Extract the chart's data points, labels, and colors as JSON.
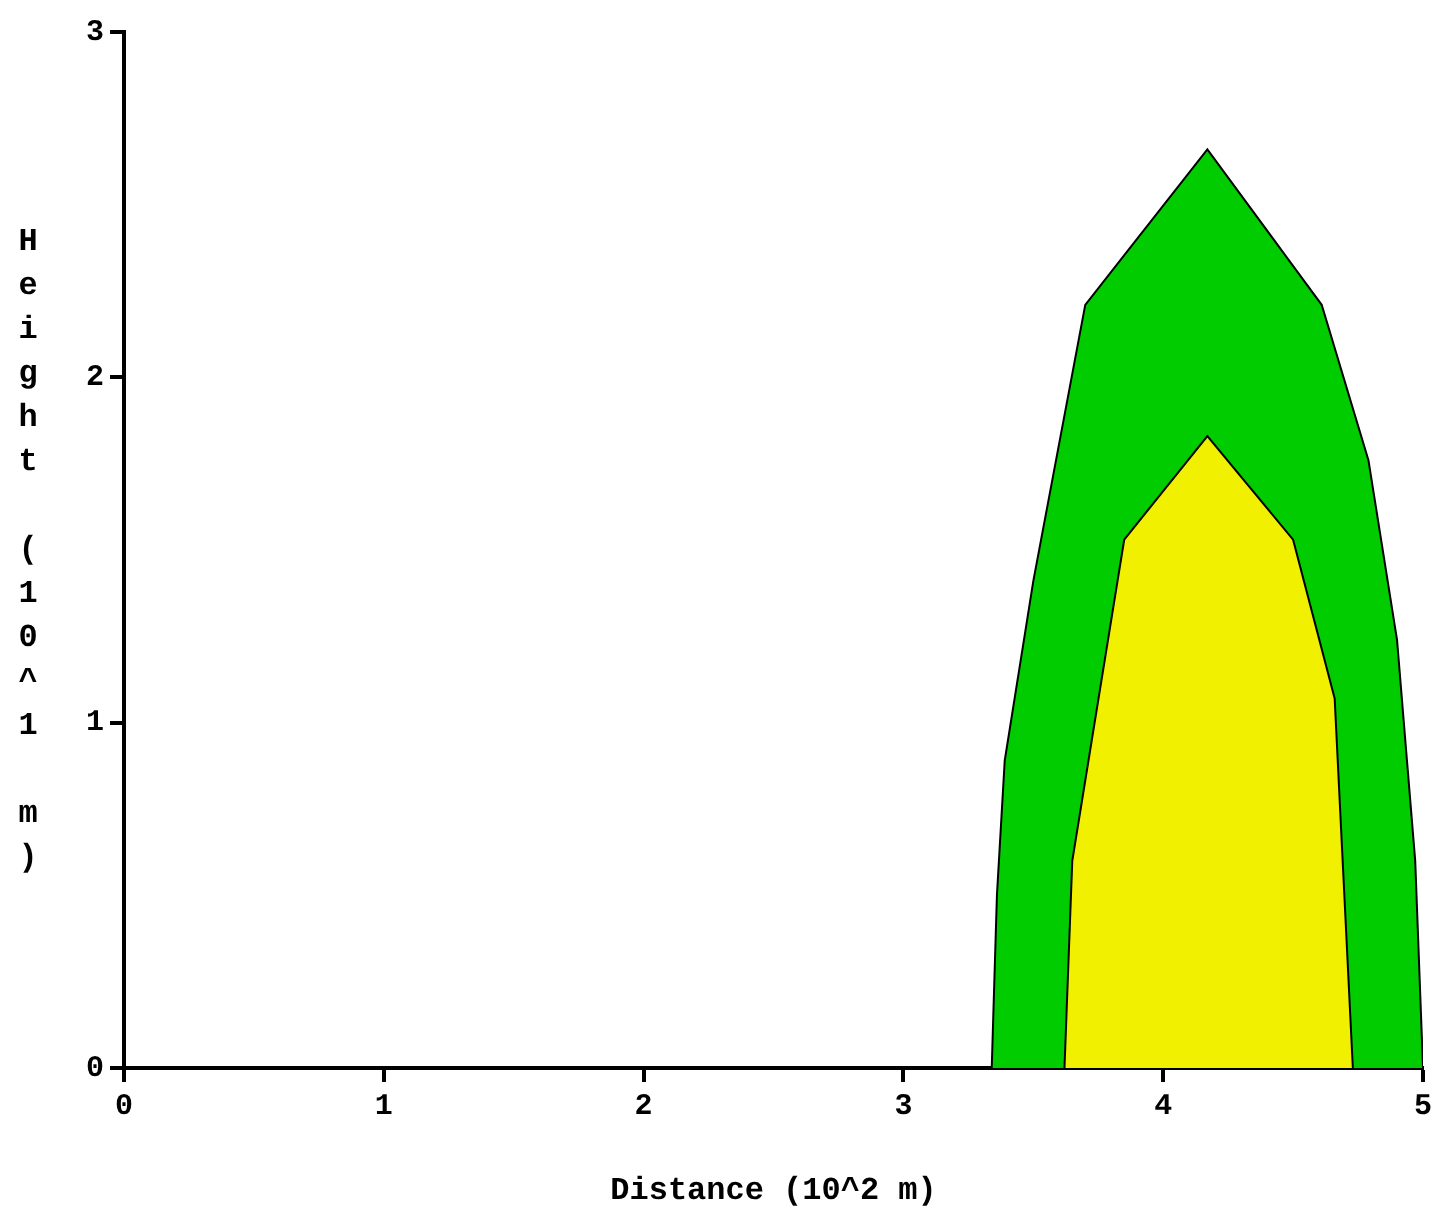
{
  "chart_data": {
    "type": "area",
    "xlabel": "Distance (10^2 m)",
    "ylabel": "Height (10^1 m)",
    "xlim": [
      0,
      5
    ],
    "xticks": [
      0,
      1,
      2,
      3,
      4,
      5
    ],
    "ylim": [
      0,
      3
    ],
    "yticks": [
      0,
      1,
      2,
      3
    ],
    "grid": false,
    "legend": false,
    "series": [
      {
        "color": "#00cc00",
        "x": [
          3.34,
          3.36,
          3.39,
          3.5,
          3.7,
          4.17,
          4.61,
          4.79,
          4.9,
          4.97,
          5.0
        ],
        "values": [
          0,
          0.5,
          0.89,
          1.41,
          2.21,
          2.66,
          2.21,
          1.76,
          1.24,
          0.6,
          0
        ]
      },
      {
        "color": "#f0f000",
        "x": [
          3.62,
          3.65,
          3.85,
          4.17,
          4.5,
          4.66,
          4.73
        ],
        "values": [
          0,
          0.6,
          1.53,
          1.83,
          1.53,
          1.07,
          0
        ]
      }
    ]
  }
}
